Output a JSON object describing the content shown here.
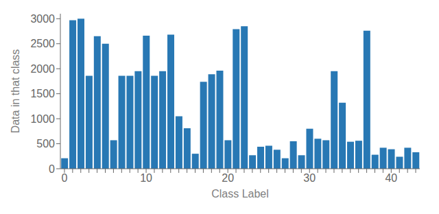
{
  "chart_data": {
    "type": "bar",
    "xlabel": "Class Label",
    "ylabel": "Data in that class",
    "categories": [
      "0",
      null,
      null,
      null,
      null,
      null,
      null,
      null,
      null,
      null,
      "10",
      null,
      null,
      null,
      null,
      null,
      null,
      null,
      null,
      null,
      "20",
      null,
      null,
      null,
      null,
      null,
      null,
      null,
      null,
      null,
      "30",
      null,
      null,
      null,
      null,
      null,
      null,
      null,
      null,
      null,
      "40",
      null,
      null,
      null
    ],
    "values": [
      210,
      2970,
      3000,
      1860,
      2650,
      2500,
      570,
      1860,
      1860,
      1950,
      2660,
      1860,
      1950,
      2680,
      1050,
      810,
      300,
      1740,
      1890,
      1960,
      570,
      2790,
      2850,
      270,
      440,
      460,
      380,
      210,
      550,
      270,
      800,
      600,
      570,
      1950,
      1320,
      540,
      560,
      2760,
      280,
      420,
      390,
      240,
      420,
      330
    ],
    "color": "#2878B4",
    "ylim": [
      0,
      3100
    ],
    "yticks": [
      0,
      500,
      1000,
      1500,
      2000,
      2500,
      3000
    ]
  }
}
